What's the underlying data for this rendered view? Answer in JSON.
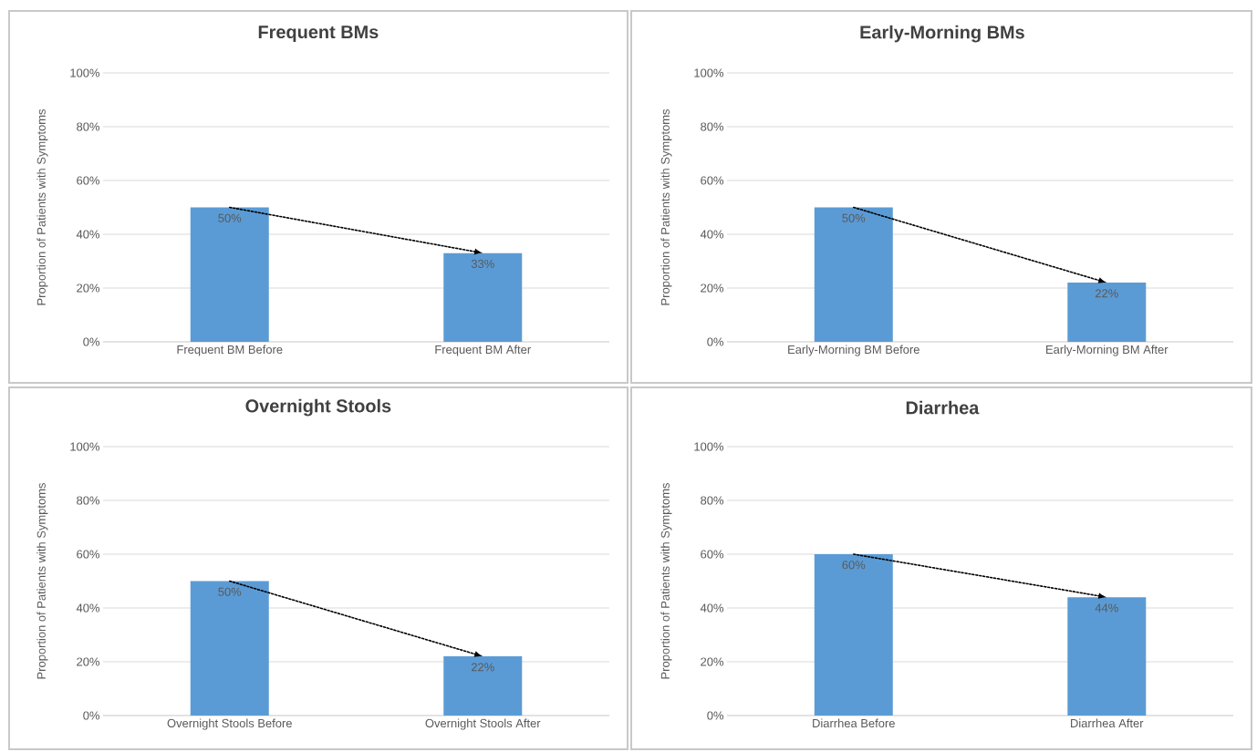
{
  "chart_data": [
    {
      "type": "bar",
      "title": "Frequent BMs",
      "ylabel": "Proportion of Patients with Symptoms",
      "categories": [
        "Frequent BM Before",
        "Frequent BM After"
      ],
      "series": [
        {
          "color": "#5b9bd5",
          "values": [
            50,
            33
          ],
          "value_labels": [
            "50%",
            "33%"
          ]
        }
      ],
      "ylim": [
        0,
        100
      ],
      "yticks": [
        {
          "value": 0,
          "label": "0%"
        },
        {
          "value": 20,
          "label": "20%"
        },
        {
          "value": 40,
          "label": "40%"
        },
        {
          "value": 60,
          "label": "60%"
        },
        {
          "value": 80,
          "label": "80%"
        },
        {
          "value": 100,
          "label": "100%"
        }
      ],
      "grid": "y"
    },
    {
      "type": "bar",
      "title": "Early-Morning BMs",
      "ylabel": "Proportion of Patients with Symptoms",
      "categories": [
        "Early-Morning BM Before",
        "Early-Morning BM After"
      ],
      "series": [
        {
          "color": "#5b9bd5",
          "values": [
            50,
            22
          ],
          "value_labels": [
            "50%",
            "22%"
          ]
        }
      ],
      "ylim": [
        0,
        100
      ],
      "yticks": [
        {
          "value": 0,
          "label": "0%"
        },
        {
          "value": 20,
          "label": "20%"
        },
        {
          "value": 40,
          "label": "40%"
        },
        {
          "value": 60,
          "label": "60%"
        },
        {
          "value": 80,
          "label": "80%"
        },
        {
          "value": 100,
          "label": "100%"
        }
      ],
      "grid": "y"
    },
    {
      "type": "bar",
      "title": "Overnight Stools",
      "ylabel": "Proportion of Patients with Symptoms",
      "categories": [
        "Overnight Stools Before",
        "Overnight Stools After"
      ],
      "series": [
        {
          "color": "#5b9bd5",
          "values": [
            50,
            22
          ],
          "value_labels": [
            "50%",
            "22%"
          ]
        }
      ],
      "ylim": [
        0,
        100
      ],
      "yticks": [
        {
          "value": 0,
          "label": "0%"
        },
        {
          "value": 20,
          "label": "20%"
        },
        {
          "value": 40,
          "label": "40%"
        },
        {
          "value": 60,
          "label": "60%"
        },
        {
          "value": 80,
          "label": "80%"
        },
        {
          "value": 100,
          "label": "100%"
        }
      ],
      "grid": "y"
    },
    {
      "type": "bar",
      "title": "Diarrhea",
      "ylabel": "Proportion of Patients with Symptoms",
      "categories": [
        "Diarrhea Before",
        "Diarrhea After"
      ],
      "series": [
        {
          "color": "#5b9bd5",
          "values": [
            60,
            44
          ],
          "value_labels": [
            "60%",
            "44%"
          ]
        }
      ],
      "ylim": [
        0,
        100
      ],
      "yticks": [
        {
          "value": 0,
          "label": "0%"
        },
        {
          "value": 20,
          "label": "20%"
        },
        {
          "value": 40,
          "label": "40%"
        },
        {
          "value": 60,
          "label": "60%"
        },
        {
          "value": 80,
          "label": "80%"
        },
        {
          "value": 100,
          "label": "100%"
        }
      ],
      "grid": "y"
    }
  ]
}
